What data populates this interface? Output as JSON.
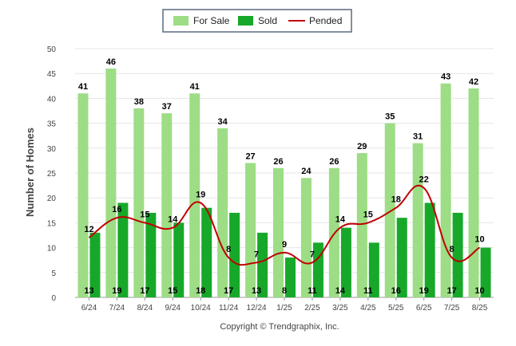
{
  "chart_data": {
    "type": "bar",
    "ylabel": "Number of Homes",
    "ylim": [
      0,
      50
    ],
    "yticks": [
      0,
      5,
      10,
      15,
      20,
      25,
      30,
      35,
      40,
      45,
      50
    ],
    "categories": [
      "6/24",
      "7/24",
      "8/24",
      "9/24",
      "10/24",
      "11/24",
      "12/24",
      "1/25",
      "2/25",
      "3/25",
      "4/25",
      "5/25",
      "6/25",
      "7/25",
      "8/25"
    ],
    "series": [
      {
        "name": "For Sale",
        "type": "bar",
        "color": "#9ddd85",
        "values": [
          41,
          46,
          38,
          37,
          41,
          34,
          27,
          26,
          24,
          26,
          29,
          35,
          31,
          43,
          42
        ]
      },
      {
        "name": "Sold",
        "type": "bar",
        "color": "#17a82a",
        "values": [
          13,
          19,
          17,
          15,
          18,
          17,
          13,
          8,
          11,
          14,
          11,
          16,
          19,
          17,
          10
        ]
      },
      {
        "name": "Pended",
        "type": "line",
        "color": "#c00000",
        "values": [
          12,
          16,
          15,
          14,
          19,
          8,
          7,
          9,
          7,
          14,
          15,
          18,
          22,
          8,
          10
        ]
      }
    ],
    "legend_position": "top-center",
    "grid": true
  },
  "footer": {
    "copyright": "Copyright © Trendgraphix, Inc."
  }
}
